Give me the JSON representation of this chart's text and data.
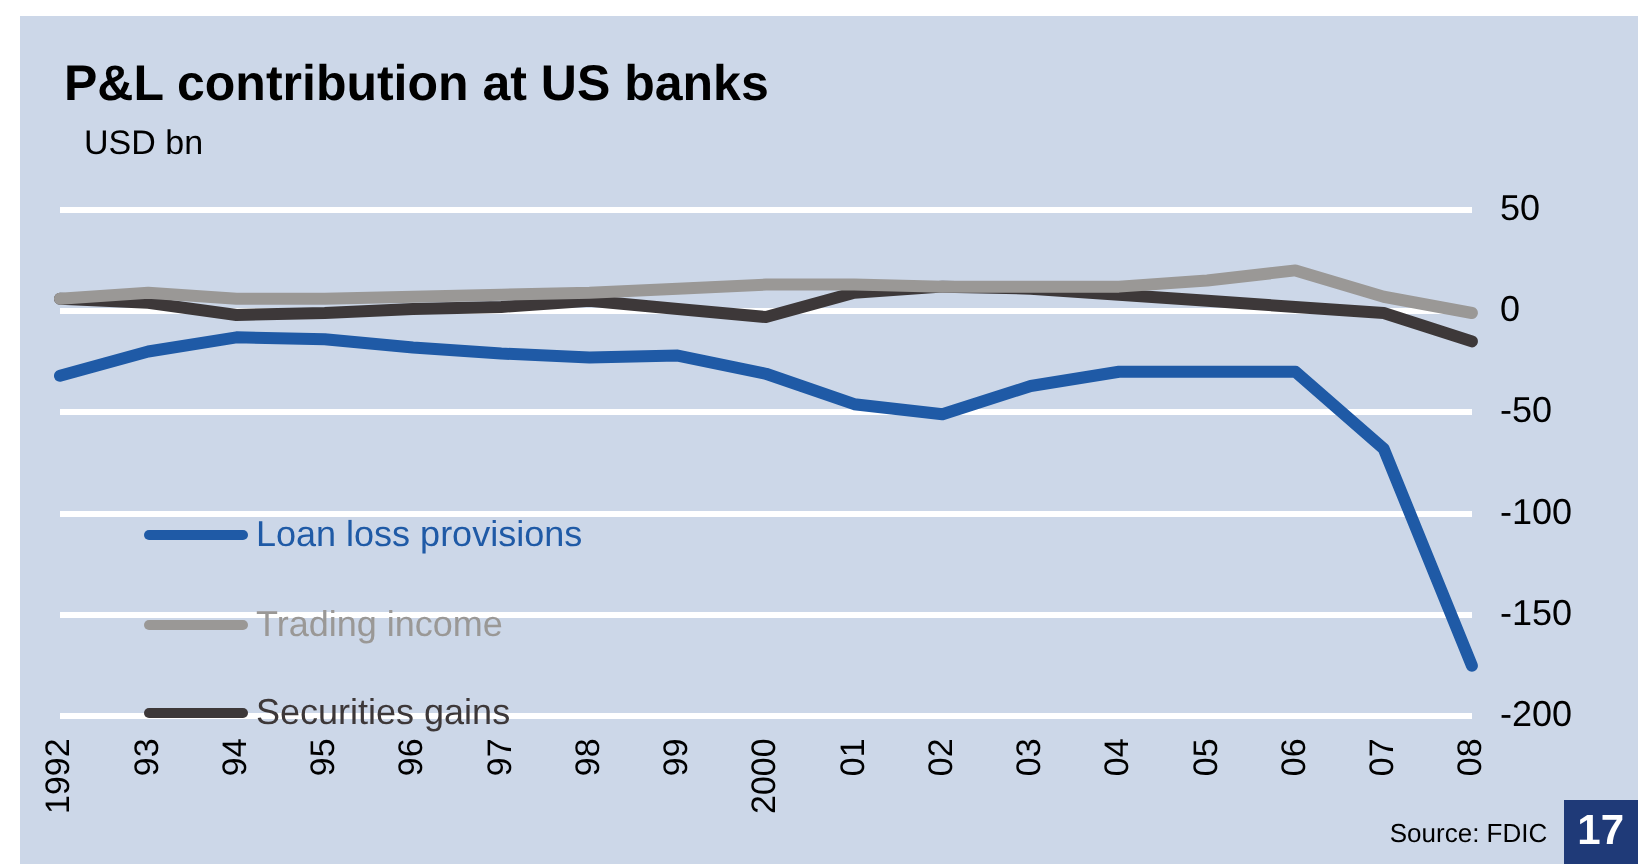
{
  "chart_data": {
    "type": "line",
    "title": "P&L contribution at US banks",
    "ylabel": "USD bn",
    "categories": [
      "1992",
      "93",
      "94",
      "95",
      "96",
      "97",
      "98",
      "99",
      "2000",
      "01",
      "02",
      "03",
      "04",
      "05",
      "06",
      "07",
      "08"
    ],
    "series": [
      {
        "name": "Loan loss provisions",
        "color": "#1f5aa6",
        "values": [
          -32,
          -20,
          -13,
          -14,
          -18,
          -21,
          -23,
          -22,
          -31,
          -46,
          -51,
          -37,
          -30,
          -30,
          -30,
          -68,
          -175
        ]
      },
      {
        "name": "Trading income",
        "color": "#9a9896",
        "values": [
          6,
          9,
          6,
          6,
          7,
          8,
          9,
          11,
          13,
          13,
          12,
          12,
          12,
          15,
          20,
          7,
          -1
        ]
      },
      {
        "name": "Securities gains",
        "color": "#3d3839",
        "values": [
          6,
          4,
          -2,
          -1,
          1,
          2,
          5,
          1,
          -3,
          9,
          12,
          11,
          8,
          5,
          2,
          -1,
          -15
        ]
      }
    ],
    "ylim": [
      -200,
      50
    ],
    "yticks": [
      50,
      0,
      -50,
      -100,
      -150,
      -200
    ],
    "grid": "y",
    "legend": "bottom left",
    "marker": "none",
    "line_style": "solid",
    "annotations": [
      "Source: FDIC",
      "17"
    ]
  }
}
